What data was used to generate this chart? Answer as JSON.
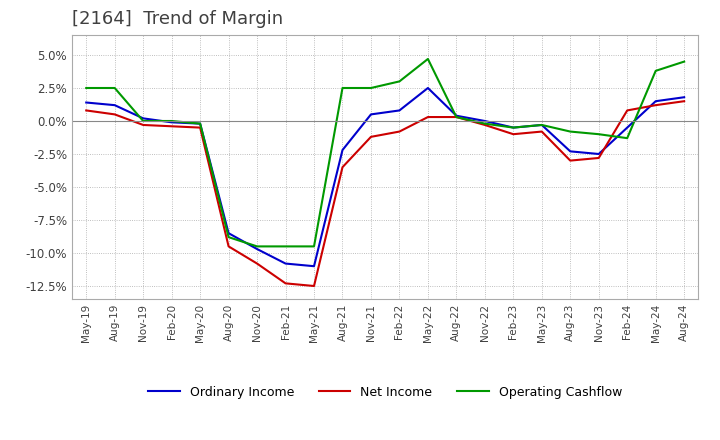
{
  "title": "[2164]  Trend of Margin",
  "title_color": "#404040",
  "title_fontsize": 13,
  "background_color": "#ffffff",
  "plot_bg_color": "#ffffff",
  "grid_color": "#aaaaaa",
  "ylim": [
    -13.5,
    6.5
  ],
  "yticks": [
    5.0,
    2.5,
    0.0,
    -2.5,
    -5.0,
    -7.5,
    -10.0,
    -12.5
  ],
  "x_labels": [
    "May-19",
    "Aug-19",
    "Nov-19",
    "Feb-20",
    "May-20",
    "Aug-20",
    "Nov-20",
    "Feb-21",
    "May-21",
    "Aug-21",
    "Nov-21",
    "Feb-22",
    "May-22",
    "Aug-22",
    "Nov-22",
    "Feb-23",
    "May-23",
    "Aug-23",
    "Nov-23",
    "Feb-24",
    "May-24",
    "Aug-24"
  ],
  "ordinary_income": [
    1.4,
    1.2,
    0.2,
    -0.1,
    -0.2,
    -8.5,
    -9.7,
    -10.8,
    -11.0,
    -2.2,
    0.5,
    0.8,
    2.5,
    0.4,
    0.0,
    -0.5,
    -0.3,
    -2.3,
    -2.5,
    -0.5,
    1.5,
    1.8
  ],
  "net_income": [
    0.8,
    0.5,
    -0.3,
    -0.4,
    -0.5,
    -9.5,
    -10.8,
    -12.3,
    -12.5,
    -3.5,
    -1.2,
    -0.8,
    0.3,
    0.3,
    -0.3,
    -1.0,
    -0.8,
    -3.0,
    -2.8,
    0.8,
    1.2,
    1.5
  ],
  "operating_cashflow": [
    2.5,
    2.5,
    0.0,
    0.0,
    -0.2,
    -8.8,
    -9.5,
    -9.5,
    -9.5,
    2.5,
    2.5,
    3.0,
    4.7,
    0.3,
    -0.2,
    -0.5,
    -0.3,
    -0.8,
    -1.0,
    -1.3,
    3.8,
    4.5
  ],
  "line_colors": {
    "ordinary_income": "#0000cc",
    "net_income": "#cc0000",
    "operating_cashflow": "#009900"
  },
  "line_width": 1.5,
  "legend_labels": {
    "ordinary_income": "Ordinary Income",
    "net_income": "Net Income",
    "operating_cashflow": "Operating Cashflow"
  }
}
